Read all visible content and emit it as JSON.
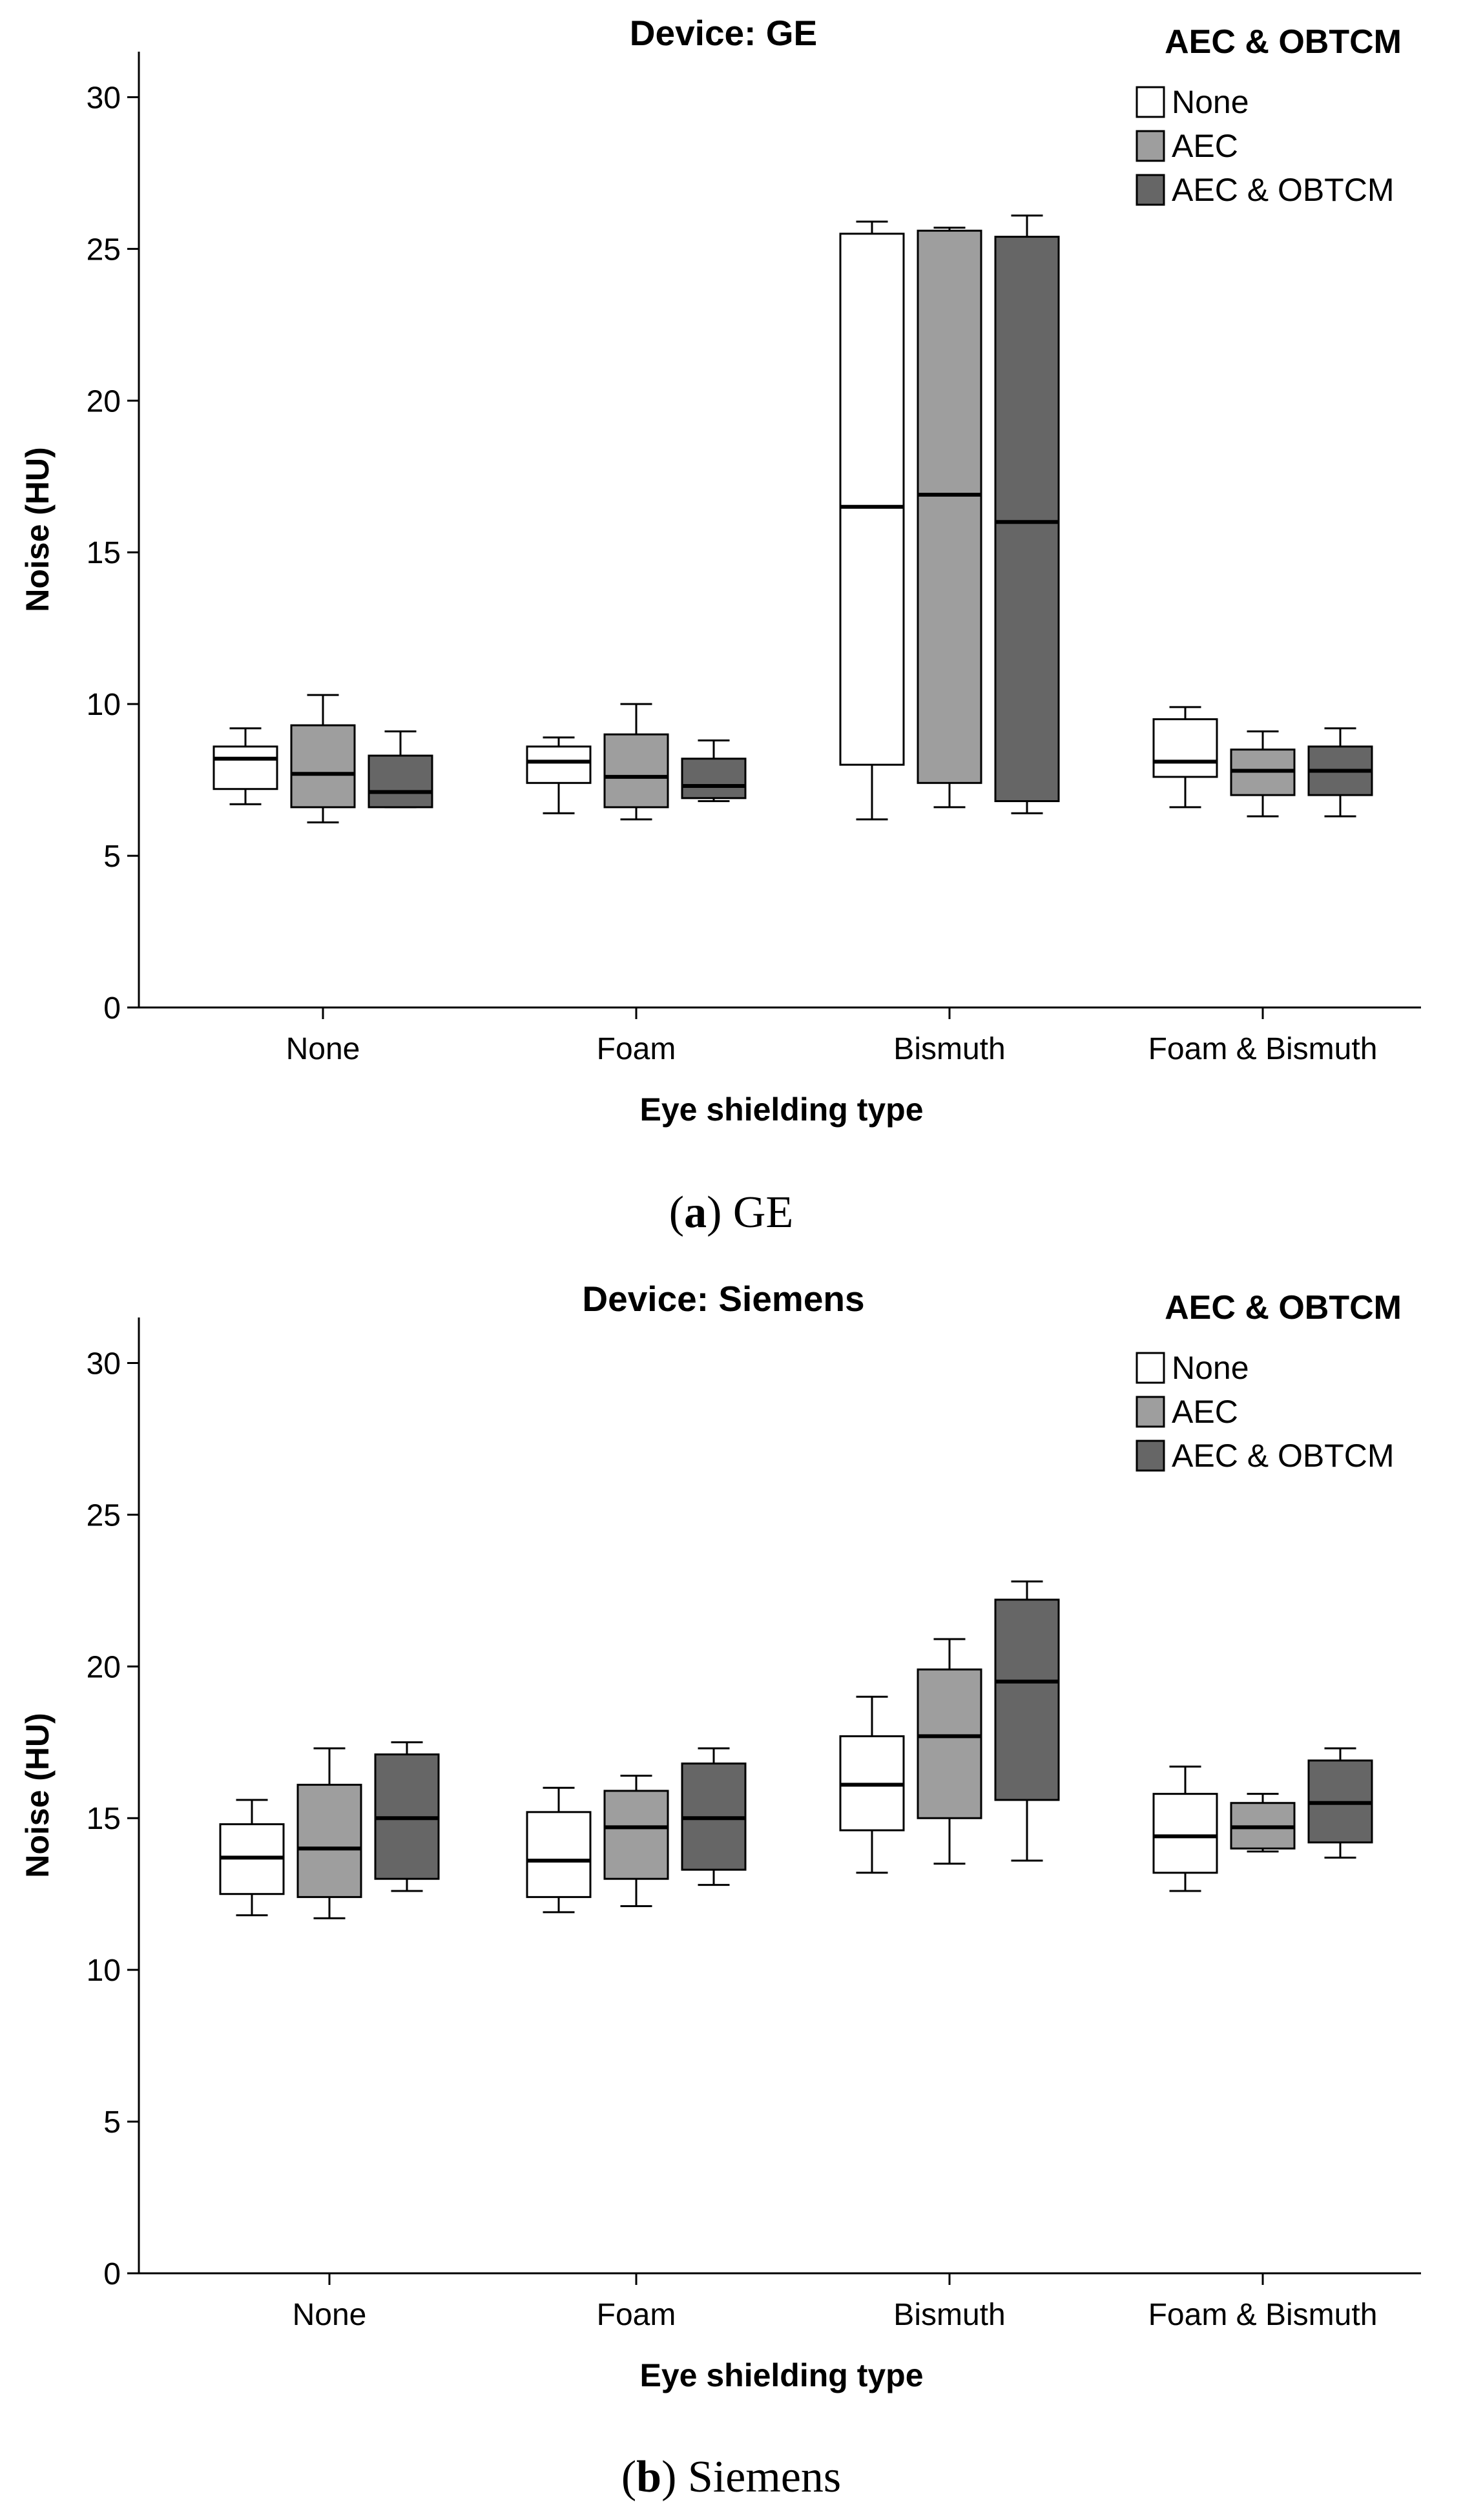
{
  "chart_data": [
    {
      "type": "boxplot",
      "title": "Device: GE",
      "caption_letter": "a",
      "caption_text": "GE",
      "xlabel": "Eye shielding type",
      "ylabel": "Noise (HU)",
      "ylim": [
        0,
        31.5
      ],
      "yticks": [
        0,
        5,
        10,
        15,
        20,
        25,
        30
      ],
      "categories": [
        "None",
        "Foam",
        "Bismuth",
        "Foam & Bismuth"
      ],
      "legend_title": "AEC & OBTCM",
      "series": [
        {
          "name": "None",
          "color": "#ffffff",
          "boxes": [
            {
              "min": 6.7,
              "q1": 7.2,
              "median": 8.2,
              "q3": 8.6,
              "max": 9.2
            },
            {
              "min": 6.4,
              "q1": 7.4,
              "median": 8.1,
              "q3": 8.6,
              "max": 8.9
            },
            {
              "min": 6.2,
              "q1": 8.0,
              "median": 16.5,
              "q3": 25.5,
              "max": 25.9
            },
            {
              "min": 6.6,
              "q1": 7.6,
              "median": 8.1,
              "q3": 9.5,
              "max": 9.9
            }
          ]
        },
        {
          "name": "AEC",
          "color": "#9e9e9e",
          "boxes": [
            {
              "min": 6.1,
              "q1": 6.6,
              "median": 7.7,
              "q3": 9.3,
              "max": 10.3
            },
            {
              "min": 6.2,
              "q1": 6.6,
              "median": 7.6,
              "q3": 9.0,
              "max": 10.0
            },
            {
              "min": 6.6,
              "q1": 7.4,
              "median": 16.9,
              "q3": 25.6,
              "max": 25.7
            },
            {
              "min": 6.3,
              "q1": 7.0,
              "median": 7.8,
              "q3": 8.5,
              "max": 9.1
            }
          ]
        },
        {
          "name": "AEC & OBTCM",
          "color": "#666666",
          "boxes": [
            {
              "min": 6.6,
              "q1": 6.6,
              "median": 7.1,
              "q3": 8.3,
              "max": 9.1
            },
            {
              "min": 6.8,
              "q1": 6.9,
              "median": 7.3,
              "q3": 8.2,
              "max": 8.8
            },
            {
              "min": 6.4,
              "q1": 6.8,
              "median": 16.0,
              "q3": 25.4,
              "max": 26.1
            },
            {
              "min": 6.3,
              "q1": 7.0,
              "median": 7.8,
              "q3": 8.6,
              "max": 9.2
            }
          ]
        }
      ]
    },
    {
      "type": "boxplot",
      "title": "Device: Siemens",
      "caption_letter": "b",
      "caption_text": "Siemens",
      "xlabel": "Eye shielding type",
      "ylabel": "Noise (HU)",
      "ylim": [
        0,
        31.5
      ],
      "yticks": [
        0,
        5,
        10,
        15,
        20,
        25,
        30
      ],
      "categories": [
        "None",
        "Foam",
        "Bismuth",
        "Foam & Bismuth"
      ],
      "legend_title": "AEC & OBTCM",
      "series": [
        {
          "name": "None",
          "color": "#ffffff",
          "boxes": [
            {
              "min": 11.8,
              "q1": 12.5,
              "median": 13.7,
              "q3": 14.8,
              "max": 15.6
            },
            {
              "min": 11.9,
              "q1": 12.4,
              "median": 13.6,
              "q3": 15.2,
              "max": 16.0
            },
            {
              "min": 13.2,
              "q1": 14.6,
              "median": 16.1,
              "q3": 17.7,
              "max": 19.0
            },
            {
              "min": 12.6,
              "q1": 13.2,
              "median": 14.4,
              "q3": 15.8,
              "max": 16.7
            }
          ]
        },
        {
          "name": "AEC",
          "color": "#9e9e9e",
          "boxes": [
            {
              "min": 11.7,
              "q1": 12.4,
              "median": 14.0,
              "q3": 16.1,
              "max": 17.3
            },
            {
              "min": 12.1,
              "q1": 13.0,
              "median": 14.7,
              "q3": 15.9,
              "max": 16.4
            },
            {
              "min": 13.5,
              "q1": 15.0,
              "median": 17.7,
              "q3": 19.9,
              "max": 20.9
            },
            {
              "min": 13.9,
              "q1": 14.0,
              "median": 14.7,
              "q3": 15.5,
              "max": 15.8
            }
          ]
        },
        {
          "name": "AEC & OBTCM",
          "color": "#666666",
          "boxes": [
            {
              "min": 12.6,
              "q1": 13.0,
              "median": 15.0,
              "q3": 17.1,
              "max": 17.5
            },
            {
              "min": 12.8,
              "q1": 13.3,
              "median": 15.0,
              "q3": 16.8,
              "max": 17.3
            },
            {
              "min": 13.6,
              "q1": 15.6,
              "median": 19.5,
              "q3": 22.2,
              "max": 22.8
            },
            {
              "min": 13.7,
              "q1": 14.2,
              "median": 15.5,
              "q3": 16.9,
              "max": 17.3
            }
          ]
        }
      ]
    }
  ]
}
